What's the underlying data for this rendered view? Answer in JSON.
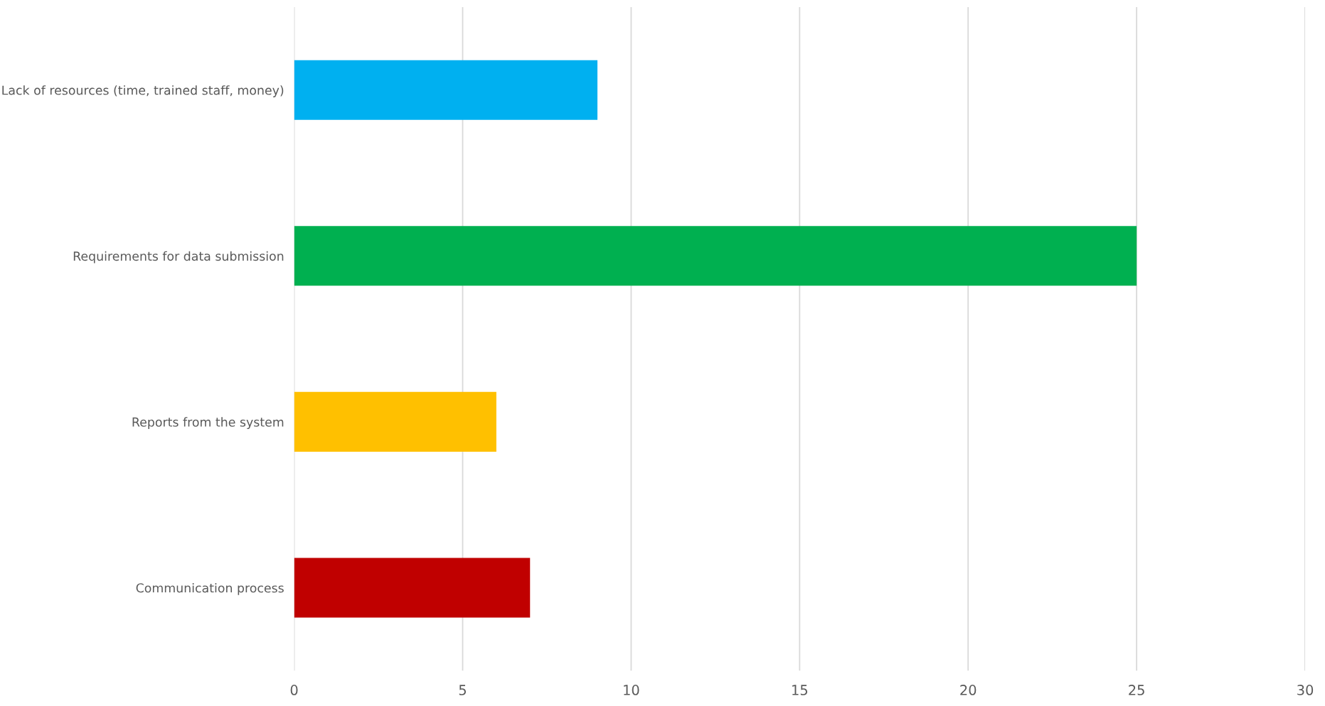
{
  "chart_data": {
    "type": "bar",
    "orientation": "horizontal",
    "categories": [
      "Lack of resources (time, trained staff, money)",
      "Requirements for data submission",
      "Reports from the system",
      "Communication process"
    ],
    "values": [
      9,
      25,
      6,
      7
    ],
    "colors": [
      "#00b0f0",
      "#00b050",
      "#ffc000",
      "#c00000"
    ],
    "xlim": [
      0,
      30
    ],
    "xticks": [
      0,
      5,
      10,
      15,
      20,
      25,
      30
    ],
    "grid": "x"
  }
}
